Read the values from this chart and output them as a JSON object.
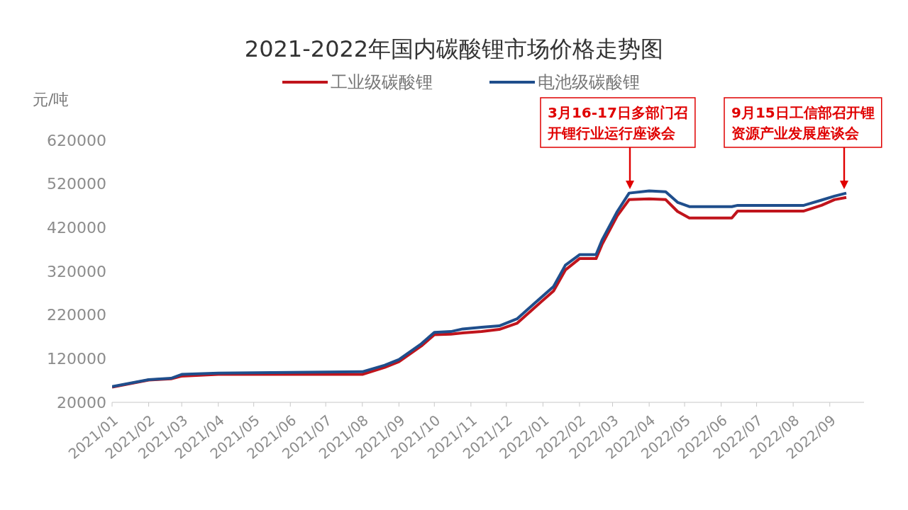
{
  "chart_data": {
    "type": "line",
    "title": "2021-2022年国内碳酸锂市场价格走势图",
    "ylabel": "元/吨",
    "series": [
      {
        "name": "工业级碳酸锂",
        "color": "#c0141c",
        "x": [
          "2021-01-01",
          "2021-02-01",
          "2021-02-20",
          "2021-03-01",
          "2021-04-01",
          "2021-08-01",
          "2021-08-20",
          "2021-09-01",
          "2021-09-20",
          "2021-10-01",
          "2021-10-15",
          "2021-10-25",
          "2021-11-10",
          "2021-11-25",
          "2021-12-10",
          "2021-12-25",
          "2022-01-10",
          "2022-01-20",
          "2022-02-01",
          "2022-02-15",
          "2022-02-20",
          "2022-03-05",
          "2022-03-15",
          "2022-04-01",
          "2022-04-15",
          "2022-04-25",
          "2022-05-05",
          "2022-06-10",
          "2022-06-15",
          "2022-08-10",
          "2022-08-25",
          "2022-09-05",
          "2022-09-15"
        ],
        "values": [
          55000,
          71000,
          74000,
          80000,
          84000,
          84000,
          100000,
          113000,
          149000,
          175000,
          176000,
          179000,
          182000,
          187000,
          201000,
          237000,
          275000,
          323000,
          349000,
          349000,
          381000,
          447000,
          484000,
          486000,
          484000,
          457000,
          442000,
          442000,
          458000,
          458000,
          471000,
          484000,
          489000
        ]
      },
      {
        "name": "电池级碳酸锂",
        "color": "#1f4e8c",
        "x": [
          "2021-01-01",
          "2021-02-01",
          "2021-02-20",
          "2021-03-01",
          "2021-04-01",
          "2021-08-01",
          "2021-08-20",
          "2021-09-01",
          "2021-09-20",
          "2021-10-01",
          "2021-10-15",
          "2021-10-25",
          "2021-11-10",
          "2021-11-25",
          "2021-12-10",
          "2021-12-25",
          "2022-01-10",
          "2022-01-20",
          "2022-02-01",
          "2022-02-15",
          "2022-02-20",
          "2022-03-05",
          "2022-03-15",
          "2022-04-01",
          "2022-04-15",
          "2022-04-25",
          "2022-05-05",
          "2022-06-10",
          "2022-06-15",
          "2022-08-10",
          "2022-08-25",
          "2022-09-05",
          "2022-09-15"
        ],
        "values": [
          56000,
          72000,
          75000,
          84000,
          87000,
          90000,
          105000,
          118000,
          154000,
          180000,
          182000,
          188000,
          192000,
          195000,
          211000,
          247000,
          285000,
          334000,
          358000,
          358000,
          391000,
          457000,
          499000,
          504000,
          502000,
          478000,
          468000,
          468000,
          471000,
          471000,
          483000,
          492000,
          499000
        ]
      }
    ],
    "xlim": [
      "2021-01-01",
      "2022-09-30"
    ],
    "xticks": [
      {
        "value": "2021-01",
        "label": "2021/01"
      },
      {
        "value": "2021-02",
        "label": "2021/02"
      },
      {
        "value": "2021-03",
        "label": "2021/03"
      },
      {
        "value": "2021-04",
        "label": "2021/04"
      },
      {
        "value": "2021-05",
        "label": "2021/05"
      },
      {
        "value": "2021-06",
        "label": "2021/06"
      },
      {
        "value": "2021-07",
        "label": "2021/07"
      },
      {
        "value": "2021-08",
        "label": "2021/08"
      },
      {
        "value": "2021-09",
        "label": "2021/09"
      },
      {
        "value": "2021-10",
        "label": "2021/10"
      },
      {
        "value": "2021-11",
        "label": "2021/11"
      },
      {
        "value": "2021-12",
        "label": "2021/12"
      },
      {
        "value": "2022-01",
        "label": "2022/01"
      },
      {
        "value": "2022-02",
        "label": "2022/02"
      },
      {
        "value": "2022-03",
        "label": "2022/03"
      },
      {
        "value": "2022-04",
        "label": "2022/04"
      },
      {
        "value": "2022-05",
        "label": "2022/05"
      },
      {
        "value": "2022-06",
        "label": "2022/06"
      },
      {
        "value": "2022-07",
        "label": "2022/07"
      },
      {
        "value": "2022-08",
        "label": "2022/08"
      },
      {
        "value": "2022-09",
        "label": "2022/09"
      }
    ],
    "ylim": [
      20000,
      620000
    ],
    "yticks": [
      20000,
      120000,
      220000,
      320000,
      420000,
      520000,
      620000
    ],
    "grid": false,
    "legend": "top",
    "marker": "none",
    "line_style": "solid",
    "annotations": [
      "3月16-17日多部门召开锂行业运行座谈会",
      "9月15日工信部召开锂资源产业发展座谈会"
    ]
  }
}
